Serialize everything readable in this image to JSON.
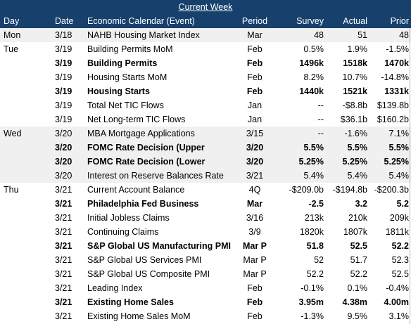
{
  "title": "Current Week",
  "headers": {
    "day": "Day",
    "date": "Date",
    "event": "Economic Calendar (Event)",
    "period": "Period",
    "survey": "Survey",
    "actual": "Actual",
    "prior": "Prior"
  },
  "rows": [
    {
      "day": "Mon",
      "date": "3/18",
      "event": "NAHB Housing Market Index",
      "period": "Mar",
      "survey": "48",
      "actual": "51",
      "prior": "48",
      "bold": false,
      "shade": true
    },
    {
      "day": "Tue",
      "date": "3/19",
      "event": "Building Permits MoM",
      "period": "Feb",
      "survey": "0.5%",
      "actual": "1.9%",
      "prior": "-1.5%",
      "bold": false,
      "shade": false
    },
    {
      "day": "",
      "date": "3/19",
      "event": "Building Permits",
      "period": "Feb",
      "survey": "1496k",
      "actual": "1518k",
      "prior": "1470k",
      "bold": true,
      "shade": false
    },
    {
      "day": "",
      "date": "3/19",
      "event": "Housing Starts MoM",
      "period": "Feb",
      "survey": "8.2%",
      "actual": "10.7%",
      "prior": "-14.8%",
      "bold": false,
      "shade": false
    },
    {
      "day": "",
      "date": "3/19",
      "event": "Housing Starts",
      "period": "Feb",
      "survey": "1440k",
      "actual": "1521k",
      "prior": "1331k",
      "bold": true,
      "shade": false
    },
    {
      "day": "",
      "date": "3/19",
      "event": "Total Net TIC Flows",
      "period": "Jan",
      "survey": "--",
      "actual": "-$8.8b",
      "prior": "$139.8b",
      "bold": false,
      "shade": false
    },
    {
      "day": "",
      "date": "3/19",
      "event": "Net Long-term TIC Flows",
      "period": "Jan",
      "survey": "--",
      "actual": "$36.1b",
      "prior": "$160.2b",
      "bold": false,
      "shade": false
    },
    {
      "day": "Wed",
      "date": "3/20",
      "event": "MBA Mortgage Applications",
      "period": "3/15",
      "survey": "--",
      "actual": "-1.6%",
      "prior": "7.1%",
      "bold": false,
      "shade": true
    },
    {
      "day": "",
      "date": "3/20",
      "event": "FOMC Rate Decision (Upper",
      "period": "3/20",
      "survey": "5.5%",
      "actual": "5.5%",
      "prior": "5.5%",
      "bold": true,
      "shade": true
    },
    {
      "day": "",
      "date": "3/20",
      "event": "FOMC Rate Decision (Lower",
      "period": "3/20",
      "survey": "5.25%",
      "actual": "5.25%",
      "prior": "5.25%",
      "bold": true,
      "shade": true
    },
    {
      "day": "",
      "date": "3/20",
      "event": "Interest on Reserve Balances Rate",
      "period": "3/21",
      "survey": "5.4%",
      "actual": "5.4%",
      "prior": "5.4%",
      "bold": false,
      "shade": true
    },
    {
      "day": "Thu",
      "date": "3/21",
      "event": "Current Account Balance",
      "period": "4Q",
      "survey": "-$209.0b",
      "actual": "-$194.8b",
      "prior": "-$200.3b",
      "bold": false,
      "shade": false
    },
    {
      "day": "",
      "date": "3/21",
      "event": "Philadelphia Fed Business",
      "period": "Mar",
      "survey": "-2.5",
      "actual": "3.2",
      "prior": "5.2",
      "bold": true,
      "shade": false
    },
    {
      "day": "",
      "date": "3/21",
      "event": "Initial Jobless Claims",
      "period": "3/16",
      "survey": "213k",
      "actual": "210k",
      "prior": "209k",
      "bold": false,
      "shade": false
    },
    {
      "day": "",
      "date": "3/21",
      "event": "Continuing Claims",
      "period": "3/9",
      "survey": "1820k",
      "actual": "1807k",
      "prior": "1811k",
      "bold": false,
      "shade": false
    },
    {
      "day": "",
      "date": "3/21",
      "event": "S&P Global US Manufacturing PMI",
      "period": "Mar P",
      "survey": "51.8",
      "actual": "52.5",
      "prior": "52.2",
      "bold": true,
      "shade": false
    },
    {
      "day": "",
      "date": "3/21",
      "event": "S&P Global US Services PMI",
      "period": "Mar P",
      "survey": "52",
      "actual": "51.7",
      "prior": "52.3",
      "bold": false,
      "shade": false
    },
    {
      "day": "",
      "date": "3/21",
      "event": "S&P Global US Composite PMI",
      "period": "Mar P",
      "survey": "52.2",
      "actual": "52.2",
      "prior": "52.5",
      "bold": false,
      "shade": false
    },
    {
      "day": "",
      "date": "3/21",
      "event": "Leading Index",
      "period": "Feb",
      "survey": "-0.1%",
      "actual": "0.1%",
      "prior": "-0.4%",
      "bold": false,
      "shade": false
    },
    {
      "day": "",
      "date": "3/21",
      "event": "Existing Home Sales",
      "period": "Feb",
      "survey": "3.95m",
      "actual": "4.38m",
      "prior": "4.00m",
      "bold": true,
      "shade": false
    },
    {
      "day": "",
      "date": "3/21",
      "event": "Existing Home Sales MoM",
      "period": "Feb",
      "survey": "-1.3%",
      "actual": "9.5%",
      "prior": "3.1%",
      "bold": false,
      "shade": false
    }
  ],
  "colors": {
    "header_bg": "#17406d",
    "header_text": "#ffffff",
    "shade_bg": "#f0f0f0"
  }
}
